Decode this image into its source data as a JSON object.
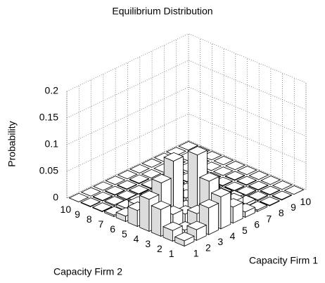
{
  "chart_data": {
    "type": "bar3d",
    "title": "Equilibrium Distribution",
    "x_label": "Capacity Firm 1",
    "y_label": "Capacity Firm 2",
    "z_label": "Probability",
    "x_categories": [
      1,
      2,
      3,
      4,
      5,
      6,
      7,
      8,
      9,
      10
    ],
    "y_categories": [
      1,
      2,
      3,
      4,
      5,
      6,
      7,
      8,
      9,
      10
    ],
    "values": [
      [
        0.01,
        0.02,
        0.05,
        0.06,
        0.03,
        0.01,
        0.003,
        0.001,
        0.001,
        0
      ],
      [
        0.02,
        0.01,
        0.03,
        0.08,
        0.04,
        0.02,
        0.005,
        0.002,
        0.001,
        0
      ],
      [
        0.05,
        0.03,
        0.02,
        0.12,
        0.06,
        0.02,
        0.005,
        0.002,
        0.001,
        0
      ],
      [
        0.06,
        0.08,
        0.11,
        0.01,
        0.03,
        0.01,
        0.003,
        0.001,
        0.001,
        0
      ],
      [
        0.03,
        0.04,
        0.06,
        0.03,
        0.01,
        0.005,
        0.002,
        0.001,
        0.001,
        0
      ],
      [
        0.01,
        0.02,
        0.02,
        0.01,
        0.005,
        0.002,
        0.001,
        0.001,
        0,
        0
      ],
      [
        0.003,
        0.005,
        0.005,
        0.003,
        0.002,
        0.001,
        0.001,
        0,
        0,
        0
      ],
      [
        0.001,
        0.002,
        0.002,
        0.001,
        0.001,
        0.001,
        0,
        0,
        0,
        0
      ],
      [
        0.001,
        0.001,
        0.001,
        0.001,
        0.001,
        0,
        0,
        0,
        0,
        0
      ],
      [
        0,
        0,
        0,
        0,
        0,
        0,
        0,
        0,
        0,
        0
      ]
    ],
    "color": "#ffffff",
    "zlim": [
      0,
      0.2
    ],
    "zticks": [
      0,
      0.05,
      0.1,
      0.15,
      0.2
    ],
    "grid": true
  }
}
